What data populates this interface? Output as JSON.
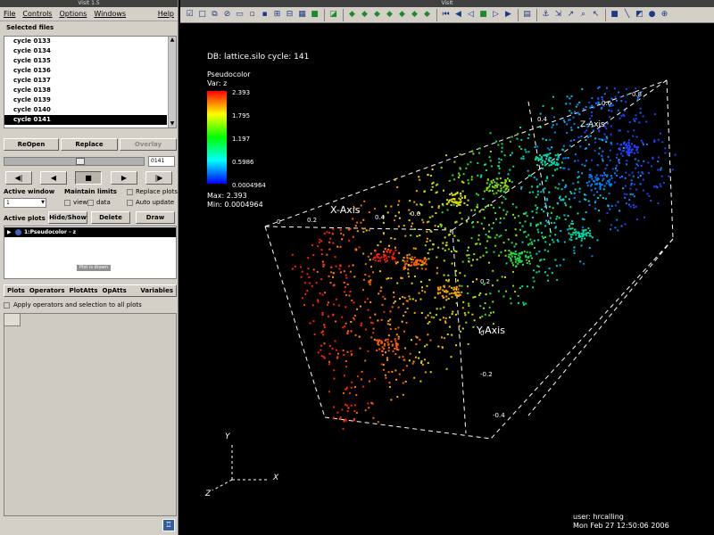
{
  "gui": {
    "title": "VisIt 1.5",
    "menu": [
      "File",
      "Controls",
      "Options",
      "Windows",
      "Help"
    ],
    "selected_files_label": "Selected files",
    "files": [
      "cycle 0133",
      "cycle 0134",
      "cycle 0135",
      "cycle 0136",
      "cycle 0137",
      "cycle 0138",
      "cycle 0139",
      "cycle 0140",
      "cycle 0141"
    ],
    "selected_file": "cycle 0141",
    "buttons": {
      "reopen": "ReOpen",
      "replace": "Replace",
      "overlay": "Overlay"
    },
    "time_slider_value": 0.55,
    "cycle_value": "0141",
    "vcr": [
      "◀|",
      "◀",
      "■",
      "▶",
      "|▶"
    ],
    "active_window_label": "Active window",
    "active_window_value": "1",
    "maintain_limits_label": "Maintain limits",
    "view_label": "view",
    "data_label": "data",
    "replace_plots_label": "Replace plots",
    "auto_update_label": "Auto update",
    "active_plots_label": "Active plots",
    "hide_show": "Hide/Show",
    "delete": "Delete",
    "draw": "Draw",
    "plot_entry": "1:Pseudocolor - z",
    "tooltip": "Plot is drawn",
    "plot_menu": [
      "Plots",
      "Operators",
      "PlotAtts",
      "OpAtts",
      "Variables"
    ],
    "apply_label": "Apply operators and selection to all plots"
  },
  "viewer": {
    "title": "VisIt",
    "db_text": "DB: lattice.silo  cycle: 141",
    "legend": {
      "title": "Pseudocolor",
      "var": "Var: z",
      "ticks": [
        "2.393",
        "1.795",
        "1.197",
        "0.5986",
        "0.0004964"
      ],
      "max_text": "Max: 2.393",
      "min_text": "Min: 0.0004964",
      "colors": [
        "#ff0000",
        "#ffff00",
        "#00ff00",
        "#00ffff",
        "#0000ff"
      ]
    },
    "axes": {
      "x_title": "X-Axis",
      "y_title": "Y-Axis",
      "z_title": "Z-Axis",
      "x_ticks": [
        "0",
        "0.2",
        "0.4",
        "0.6"
      ],
      "y_ticks": [
        "0.2",
        "0",
        "-0.2",
        "-0.4"
      ],
      "z_ticks": [
        "0.4",
        "0.6",
        "0.8"
      ]
    },
    "triad": {
      "x": "X",
      "y": "Y",
      "z": "Z"
    },
    "user": "user: hrcalling",
    "date": "Mon Feb 27 12:50:06 2006"
  }
}
